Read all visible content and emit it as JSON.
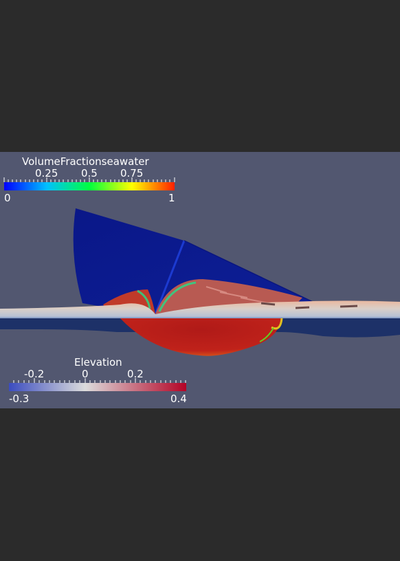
{
  "volume_fraction_legend": {
    "title": "VolumeFractionseawater",
    "tick_labels": [
      "0.25",
      "0.5",
      "0.75"
    ],
    "min_label": "0",
    "max_label": "1",
    "colormap": [
      "#0000ff",
      "#00ffff",
      "#00ff00",
      "#ffff00",
      "#ff0000"
    ]
  },
  "elevation_legend": {
    "title": "Elevation",
    "tick_labels": [
      "-0.2",
      "0",
      "0.2"
    ],
    "min_label": "-0.3",
    "max_label": "0.4",
    "colormap": [
      "#3b4cc0",
      "#dddddd",
      "#b40426"
    ]
  },
  "colors": {
    "background": "#2b2b2b",
    "viewport": "#525770",
    "hull": "#0b1a8a"
  }
}
